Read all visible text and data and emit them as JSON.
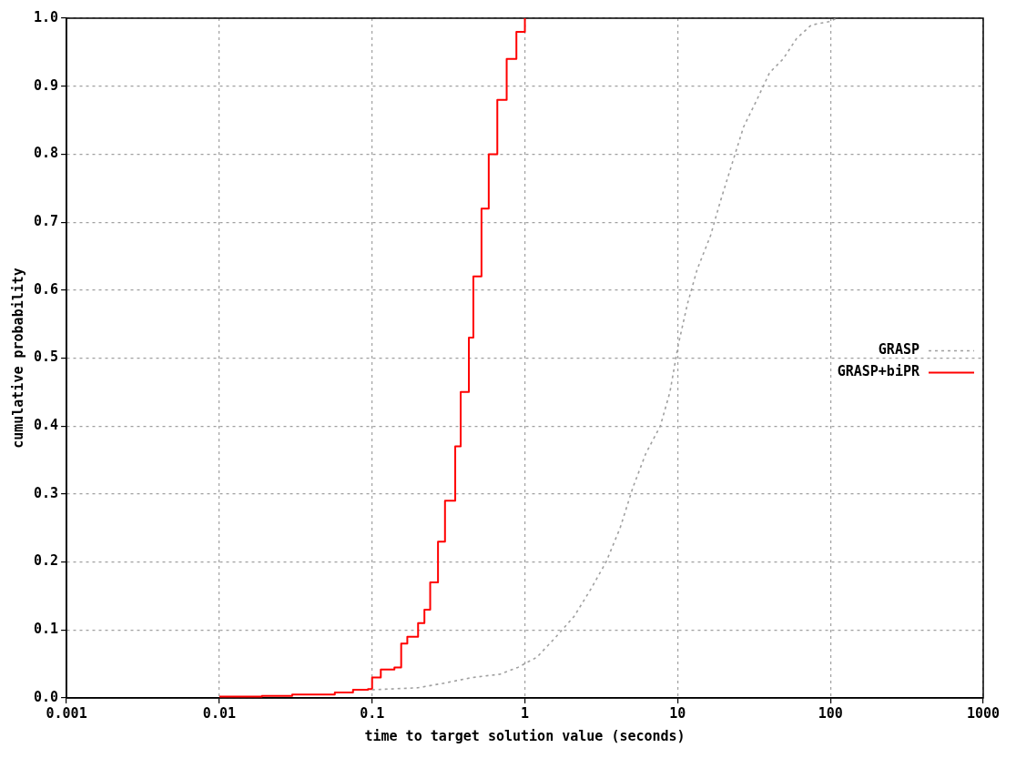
{
  "chart_data": {
    "type": "line",
    "xlabel": "time to target solution value (seconds)",
    "ylabel": "cumulative probability",
    "series": [
      {
        "name": "GRASP",
        "color": "#a0a0a0",
        "line_style": "dotted",
        "x": [
          0.1,
          0.2,
          0.3,
          0.45,
          0.69,
          0.9,
          1.2,
          1.6,
          2.1,
          2.7,
          3.4,
          4.2,
          5.1,
          6.2,
          7.7,
          8.9,
          10.1,
          11.6,
          13.4,
          16.4,
          19,
          23,
          27,
          33,
          40,
          49,
          60,
          75,
          98,
          110
        ],
        "values": [
          0.012,
          0.015,
          0.022,
          0.03,
          0.035,
          0.045,
          0.06,
          0.09,
          0.12,
          0.16,
          0.2,
          0.25,
          0.31,
          0.36,
          0.4,
          0.45,
          0.52,
          0.58,
          0.63,
          0.68,
          0.73,
          0.79,
          0.84,
          0.88,
          0.92,
          0.94,
          0.97,
          0.99,
          0.995,
          1.0
        ]
      },
      {
        "name": "GRASP+biPR",
        "color": "#ff0000",
        "type": "step",
        "line_style": "solid",
        "x": [
          0.01,
          0.019,
          0.03,
          0.057,
          0.075,
          0.094,
          0.1,
          0.114,
          0.14,
          0.155,
          0.17,
          0.2,
          0.22,
          0.24,
          0.27,
          0.3,
          0.35,
          0.38,
          0.43,
          0.46,
          0.52,
          0.58,
          0.66,
          0.76,
          0.88,
          1.0
        ],
        "values": [
          0.002,
          0.003,
          0.005,
          0.008,
          0.012,
          0.013,
          0.03,
          0.042,
          0.045,
          0.08,
          0.09,
          0.11,
          0.13,
          0.17,
          0.23,
          0.29,
          0.37,
          0.45,
          0.53,
          0.62,
          0.72,
          0.8,
          0.88,
          0.94,
          0.98,
          1.0
        ]
      }
    ],
    "log": "x",
    "xlim": [
      0.001,
      1000
    ],
    "xticks": [
      {
        "value": 0.001,
        "label": "0.001"
      },
      {
        "value": 0.01,
        "label": "0.01"
      },
      {
        "value": 0.1,
        "label": "0.1"
      },
      1,
      10,
      100,
      1000
    ],
    "ylim": [
      0,
      1
    ],
    "yticks": [
      {
        "value": 0,
        "label": "0.0"
      },
      0.1,
      0.2,
      0.3,
      0.4,
      0.5,
      0.6,
      0.7,
      0.8,
      0.9,
      {
        "value": 1,
        "label": "1.0"
      }
    ],
    "grid": true,
    "legend": "right",
    "marker": "none"
  }
}
